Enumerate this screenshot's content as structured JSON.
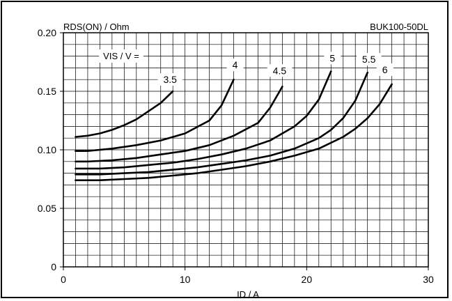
{
  "chart_data": {
    "type": "line",
    "title": "",
    "device_label": "BUK100-50DL",
    "ylabel": "RDS(ON) / Ohm",
    "xlabel": "ID / A",
    "legend_title": "VIS / V =",
    "xlim": [
      0,
      30
    ],
    "ylim": [
      0,
      0.2
    ],
    "x_ticks": [
      0,
      10,
      20,
      30
    ],
    "x_tick_labels": [
      "0",
      "10",
      "20",
      "30"
    ],
    "y_ticks": [
      0,
      0.05,
      0.1,
      0.15,
      0.2
    ],
    "y_tick_labels": [
      "0",
      "0.05",
      "0.10",
      "0.15",
      "0.20"
    ],
    "grid": true,
    "series": [
      {
        "name": "3.5",
        "x": [
          1,
          2,
          3,
          4,
          5,
          6,
          7,
          8,
          9
        ],
        "y": [
          0.111,
          0.112,
          0.114,
          0.117,
          0.121,
          0.126,
          0.133,
          0.14,
          0.15
        ]
      },
      {
        "name": "4",
        "x": [
          1,
          2,
          4,
          6,
          8,
          10,
          12,
          13,
          14
        ],
        "y": [
          0.099,
          0.099,
          0.101,
          0.104,
          0.108,
          0.114,
          0.125,
          0.138,
          0.16
        ]
      },
      {
        "name": "4.5",
        "x": [
          1,
          2,
          4,
          6,
          8,
          10,
          12,
          14,
          16,
          17,
          18
        ],
        "y": [
          0.09,
          0.09,
          0.091,
          0.093,
          0.096,
          0.099,
          0.104,
          0.112,
          0.123,
          0.136,
          0.154
        ]
      },
      {
        "name": "5",
        "x": [
          1,
          3,
          5,
          7,
          9,
          11,
          13,
          15,
          17,
          19,
          20,
          21,
          22
        ],
        "y": [
          0.084,
          0.084,
          0.085,
          0.087,
          0.089,
          0.092,
          0.096,
          0.101,
          0.108,
          0.12,
          0.129,
          0.143,
          0.167
        ]
      },
      {
        "name": "5.5",
        "x": [
          1,
          3,
          5,
          7,
          9,
          11,
          13,
          15,
          17,
          19,
          21,
          22,
          23,
          24,
          25
        ],
        "y": [
          0.079,
          0.079,
          0.08,
          0.081,
          0.083,
          0.085,
          0.088,
          0.091,
          0.095,
          0.101,
          0.11,
          0.117,
          0.127,
          0.142,
          0.166
        ]
      },
      {
        "name": "6",
        "x": [
          1,
          3,
          5,
          7,
          9,
          11,
          13,
          15,
          17,
          19,
          21,
          23,
          24,
          25,
          26,
          27
        ],
        "y": [
          0.074,
          0.074,
          0.075,
          0.076,
          0.078,
          0.08,
          0.083,
          0.086,
          0.09,
          0.095,
          0.101,
          0.111,
          0.118,
          0.127,
          0.139,
          0.156
        ]
      }
    ]
  }
}
